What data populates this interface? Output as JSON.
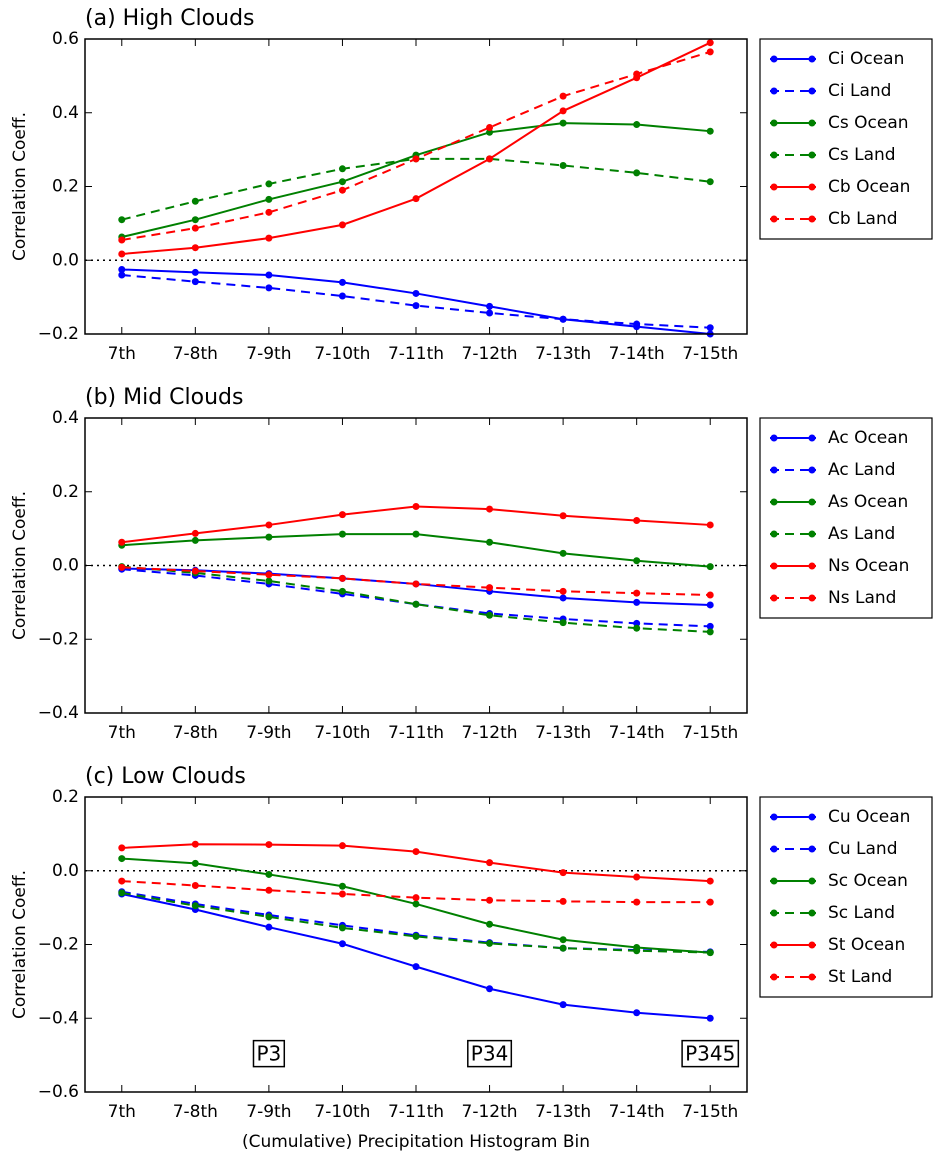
{
  "chart_data": [
    {
      "type": "line",
      "title": "(a) High Clouds",
      "ylabel": "Correlation Coeff.",
      "categories": [
        "7th",
        "7-8th",
        "7-9th",
        "7-10th",
        "7-11th",
        "7-12th",
        "7-13th",
        "7-14th",
        "7-15th"
      ],
      "ylim": [
        -0.2,
        0.6
      ],
      "yticks": [
        {
          "value": -0.2,
          "label": "−0.2"
        },
        {
          "value": 0,
          "label": "0.0"
        },
        {
          "value": 0.2,
          "label": "0.2"
        },
        {
          "value": 0.4,
          "label": "0.4"
        },
        {
          "value": 0.6,
          "label": "0.6"
        }
      ],
      "reference_line": 0,
      "legend": "outside right",
      "series": [
        {
          "name": "Ci Ocean",
          "color": "#0000ff",
          "linestyle": "solid",
          "values": [
            -0.025,
            -0.033,
            -0.04,
            -0.06,
            -0.09,
            -0.125,
            -0.16,
            -0.18,
            -0.2
          ]
        },
        {
          "name": "Ci Land",
          "color": "#0000ff",
          "linestyle": "dashed",
          "values": [
            -0.04,
            -0.058,
            -0.075,
            -0.097,
            -0.123,
            -0.143,
            -0.16,
            -0.173,
            -0.183
          ]
        },
        {
          "name": "Cs Ocean",
          "color": "#008000",
          "linestyle": "solid",
          "values": [
            0.063,
            0.11,
            0.165,
            0.213,
            0.285,
            0.347,
            0.372,
            0.368,
            0.35
          ]
        },
        {
          "name": "Cs Land",
          "color": "#008000",
          "linestyle": "dashed",
          "values": [
            0.11,
            0.16,
            0.207,
            0.248,
            0.275,
            0.275,
            0.257,
            0.237,
            0.213
          ]
        },
        {
          "name": "Cb Ocean",
          "color": "#ff0000",
          "linestyle": "solid",
          "values": [
            0.017,
            0.034,
            0.06,
            0.096,
            0.167,
            0.275,
            0.405,
            0.495,
            0.59
          ]
        },
        {
          "name": "Cb Land",
          "color": "#ff0000",
          "linestyle": "dashed",
          "values": [
            0.055,
            0.087,
            0.13,
            0.19,
            0.275,
            0.36,
            0.445,
            0.505,
            0.565
          ]
        }
      ]
    },
    {
      "type": "line",
      "title": "(b) Mid Clouds",
      "ylabel": "Correlation Coeff.",
      "categories": [
        "7th",
        "7-8th",
        "7-9th",
        "7-10th",
        "7-11th",
        "7-12th",
        "7-13th",
        "7-14th",
        "7-15th"
      ],
      "ylim": [
        -0.4,
        0.4
      ],
      "yticks": [
        {
          "value": -0.4,
          "label": "−0.4"
        },
        {
          "value": -0.2,
          "label": "−0.2"
        },
        {
          "value": 0,
          "label": "0.0"
        },
        {
          "value": 0.2,
          "label": "0.2"
        },
        {
          "value": 0.4,
          "label": "0.4"
        }
      ],
      "reference_line": 0,
      "legend": "outside right",
      "series": [
        {
          "name": "Ac Ocean",
          "color": "#0000ff",
          "linestyle": "solid",
          "values": [
            -0.008,
            -0.013,
            -0.022,
            -0.035,
            -0.05,
            -0.07,
            -0.088,
            -0.1,
            -0.107
          ]
        },
        {
          "name": "Ac Land",
          "color": "#0000ff",
          "linestyle": "dashed",
          "values": [
            -0.01,
            -0.027,
            -0.05,
            -0.077,
            -0.105,
            -0.13,
            -0.145,
            -0.157,
            -0.165
          ]
        },
        {
          "name": "As Ocean",
          "color": "#008000",
          "linestyle": "solid",
          "values": [
            0.055,
            0.068,
            0.077,
            0.085,
            0.085,
            0.063,
            0.033,
            0.013,
            -0.003
          ]
        },
        {
          "name": "As Land",
          "color": "#008000",
          "linestyle": "dashed",
          "values": [
            -0.003,
            -0.02,
            -0.042,
            -0.07,
            -0.105,
            -0.135,
            -0.155,
            -0.17,
            -0.18
          ]
        },
        {
          "name": "Ns Ocean",
          "color": "#ff0000",
          "linestyle": "solid",
          "values": [
            0.063,
            0.087,
            0.11,
            0.138,
            0.16,
            0.153,
            0.135,
            0.122,
            0.11
          ]
        },
        {
          "name": "Ns Land",
          "color": "#ff0000",
          "linestyle": "dashed",
          "values": [
            -0.005,
            -0.015,
            -0.025,
            -0.035,
            -0.05,
            -0.06,
            -0.07,
            -0.075,
            -0.08
          ]
        }
      ]
    },
    {
      "type": "line",
      "title": "(c) Low Clouds",
      "ylabel": "Correlation Coeff.",
      "xlabel": "(Cumulative) Precipitation Histogram Bin",
      "categories": [
        "7th",
        "7-8th",
        "7-9th",
        "7-10th",
        "7-11th",
        "7-12th",
        "7-13th",
        "7-14th",
        "7-15th"
      ],
      "ylim": [
        -0.6,
        0.2
      ],
      "yticks": [
        {
          "value": -0.6,
          "label": "−0.6"
        },
        {
          "value": -0.4,
          "label": "−0.4"
        },
        {
          "value": -0.2,
          "label": "−0.2"
        },
        {
          "value": 0,
          "label": "0.0"
        },
        {
          "value": 0.2,
          "label": "0.2"
        }
      ],
      "reference_line": 0,
      "legend": "outside right",
      "annotations": [
        {
          "text": "P3",
          "x": 2,
          "y": -0.5
        },
        {
          "text": "P34",
          "x": 5,
          "y": -0.5
        },
        {
          "text": "P345",
          "x": 8,
          "y": -0.5
        }
      ],
      "series": [
        {
          "name": "Cu Ocean",
          "color": "#0000ff",
          "linestyle": "solid",
          "values": [
            -0.063,
            -0.105,
            -0.153,
            -0.198,
            -0.26,
            -0.32,
            -0.363,
            -0.385,
            -0.4
          ]
        },
        {
          "name": "Cu Land",
          "color": "#0000ff",
          "linestyle": "dashed",
          "values": [
            -0.057,
            -0.09,
            -0.12,
            -0.148,
            -0.175,
            -0.195,
            -0.21,
            -0.215,
            -0.22
          ]
        },
        {
          "name": "Sc Ocean",
          "color": "#008000",
          "linestyle": "solid",
          "values": [
            0.033,
            0.02,
            -0.01,
            -0.042,
            -0.09,
            -0.145,
            -0.187,
            -0.208,
            -0.222
          ]
        },
        {
          "name": "Sc Land",
          "color": "#008000",
          "linestyle": "dashed",
          "values": [
            -0.06,
            -0.095,
            -0.125,
            -0.155,
            -0.178,
            -0.197,
            -0.21,
            -0.217,
            -0.222
          ]
        },
        {
          "name": "St Ocean",
          "color": "#ff0000",
          "linestyle": "solid",
          "values": [
            0.062,
            0.072,
            0.071,
            0.068,
            0.052,
            0.022,
            -0.005,
            -0.017,
            -0.028
          ]
        },
        {
          "name": "St Land",
          "color": "#ff0000",
          "linestyle": "dashed",
          "values": [
            -0.028,
            -0.04,
            -0.053,
            -0.063,
            -0.073,
            -0.08,
            -0.083,
            -0.085,
            -0.085
          ]
        }
      ]
    }
  ]
}
